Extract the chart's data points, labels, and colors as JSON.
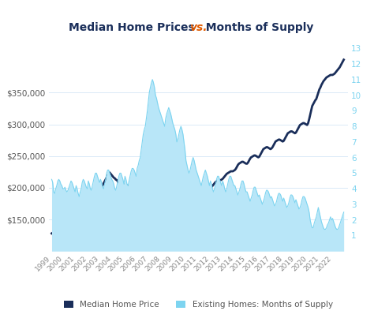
{
  "title_left": "Median Home Prices ",
  "title_vs": "vs.",
  "title_right": "  Months of Supply",
  "title_color": "#1a2e5a",
  "title_vs_color": "#e05a00",
  "price_color": "#1a2e5a",
  "supply_color": "#7dd4f0",
  "supply_fill_color": "#b8e6f8",
  "background_color": "#ffffff",
  "grid_color": "#daeaf7",
  "legend_price_label": "Median Home Price",
  "legend_supply_label": "Existing Homes: Months of Supply",
  "ylim_price_min": 100000,
  "ylim_price_max": 420000,
  "ylim_supply_min": 0,
  "ylim_supply_max": 13,
  "price_yticks": [
    150000,
    200000,
    250000,
    300000,
    350000
  ],
  "supply_yticks": [
    1,
    2,
    3,
    4,
    5,
    6,
    7,
    8,
    9,
    10,
    11,
    12,
    13
  ],
  "months_supply": [
    4.6,
    4.4,
    3.8,
    3.7,
    4.0,
    4.2,
    4.5,
    4.6,
    4.5,
    4.3,
    4.2,
    4.0,
    4.0,
    4.1,
    3.9,
    3.8,
    3.9,
    4.1,
    4.3,
    4.5,
    4.4,
    4.2,
    4.0,
    3.8,
    4.2,
    4.0,
    3.7,
    3.5,
    3.8,
    4.0,
    4.4,
    4.6,
    4.5,
    4.3,
    4.1,
    4.0,
    4.5,
    4.3,
    4.0,
    3.9,
    4.2,
    4.5,
    4.8,
    5.0,
    5.0,
    4.8,
    4.6,
    4.4,
    4.6,
    4.4,
    4.1,
    4.0,
    4.3,
    4.6,
    5.0,
    5.2,
    5.2,
    5.0,
    4.8,
    4.6,
    4.5,
    4.3,
    4.0,
    3.9,
    4.2,
    4.5,
    4.8,
    5.0,
    5.0,
    4.8,
    4.6,
    4.3,
    4.8,
    4.6,
    4.3,
    4.2,
    4.5,
    4.8,
    5.1,
    5.3,
    5.3,
    5.2,
    5.0,
    4.8,
    5.3,
    5.5,
    5.8,
    6.0,
    6.5,
    7.0,
    7.5,
    7.8,
    8.0,
    8.5,
    9.0,
    9.6,
    10.2,
    10.5,
    10.8,
    11.0,
    10.8,
    10.5,
    10.0,
    9.8,
    9.5,
    9.2,
    9.0,
    8.8,
    8.6,
    8.4,
    8.2,
    8.0,
    8.5,
    8.8,
    9.0,
    9.2,
    9.0,
    8.8,
    8.5,
    8.2,
    8.0,
    7.8,
    7.5,
    7.0,
    7.2,
    7.5,
    7.8,
    8.0,
    7.8,
    7.5,
    7.0,
    6.5,
    5.8,
    5.5,
    5.2,
    5.0,
    5.2,
    5.5,
    5.8,
    6.0,
    5.8,
    5.5,
    5.2,
    5.0,
    4.8,
    4.6,
    4.4,
    4.2,
    4.5,
    4.8,
    5.0,
    5.2,
    5.0,
    4.8,
    4.5,
    4.2,
    4.5,
    4.3,
    4.0,
    3.8,
    4.0,
    4.3,
    4.6,
    4.8,
    4.8,
    4.6,
    4.4,
    4.2,
    4.5,
    4.3,
    4.0,
    3.8,
    4.0,
    4.3,
    4.6,
    4.8,
    4.8,
    4.6,
    4.4,
    4.2,
    4.2,
    4.0,
    3.8,
    3.6,
    3.8,
    4.0,
    4.3,
    4.5,
    4.5,
    4.3,
    4.0,
    3.8,
    3.8,
    3.6,
    3.4,
    3.2,
    3.4,
    3.6,
    3.9,
    4.1,
    4.1,
    3.9,
    3.7,
    3.5,
    3.6,
    3.4,
    3.2,
    3.0,
    3.2,
    3.4,
    3.7,
    3.9,
    3.9,
    3.8,
    3.6,
    3.4,
    3.5,
    3.3,
    3.1,
    2.9,
    3.0,
    3.2,
    3.5,
    3.7,
    3.7,
    3.6,
    3.4,
    3.2,
    3.4,
    3.2,
    3.0,
    2.8,
    2.9,
    3.1,
    3.4,
    3.6,
    3.6,
    3.5,
    3.3,
    3.1,
    3.3,
    3.1,
    2.9,
    2.7,
    2.8,
    3.0,
    3.3,
    3.5,
    3.5,
    3.4,
    3.2,
    3.0,
    2.8,
    2.5,
    2.0,
    1.7,
    1.5,
    1.5,
    1.8,
    2.0,
    2.2,
    2.5,
    2.8,
    2.5,
    2.2,
    1.9,
    1.7,
    1.5,
    1.4,
    1.4,
    1.5,
    1.7,
    1.8,
    2.0,
    2.2,
    2.0,
    2.1,
    1.9,
    1.7,
    1.5,
    1.4,
    1.4,
    1.5,
    1.7,
    1.9,
    2.1,
    2.3,
    2.5
  ],
  "home_prices": [
    128000,
    129000,
    130000,
    131000,
    132000,
    133000,
    134000,
    135000,
    136000,
    137000,
    138000,
    139000,
    140000,
    141000,
    142000,
    143000,
    144000,
    145000,
    146000,
    147000,
    148000,
    149000,
    150000,
    151000,
    152000,
    154000,
    156000,
    158000,
    160000,
    162000,
    164000,
    166000,
    168000,
    170000,
    172000,
    174000,
    176000,
    178000,
    180000,
    182000,
    184000,
    186000,
    188000,
    190000,
    192000,
    194000,
    196000,
    198000,
    200000,
    202000,
    204000,
    207000,
    210000,
    213000,
    216000,
    220000,
    222000,
    224000,
    222000,
    220000,
    218000,
    216000,
    215000,
    213000,
    212000,
    210000,
    208000,
    207000,
    206000,
    205000,
    205000,
    205000,
    205000,
    205000,
    204000,
    203000,
    202000,
    201000,
    200000,
    200000,
    199000,
    198000,
    197000,
    196000,
    195000,
    194000,
    193000,
    193000,
    193000,
    193000,
    192000,
    191000,
    190000,
    189000,
    188000,
    187000,
    186000,
    185000,
    184000,
    183000,
    182000,
    181000,
    180000,
    179000,
    178000,
    177000,
    176000,
    175000,
    174000,
    173000,
    172000,
    171000,
    170000,
    170000,
    170000,
    170000,
    170000,
    169000,
    169000,
    168000,
    167000,
    166000,
    165000,
    164000,
    163000,
    163000,
    163000,
    163000,
    163000,
    164000,
    165000,
    166000,
    168000,
    170000,
    172000,
    174000,
    176000,
    178000,
    179000,
    180000,
    181000,
    181000,
    181000,
    181000,
    182000,
    184000,
    186000,
    188000,
    190000,
    192000,
    194000,
    196000,
    197000,
    198000,
    198000,
    198000,
    199000,
    201000,
    203000,
    205000,
    207000,
    209000,
    210000,
    211000,
    212000,
    212000,
    212000,
    213000,
    214000,
    216000,
    218000,
    220000,
    222000,
    223000,
    224000,
    225000,
    226000,
    226000,
    226000,
    227000,
    228000,
    230000,
    233000,
    236000,
    238000,
    239000,
    240000,
    241000,
    241000,
    240000,
    239000,
    238000,
    238000,
    240000,
    243000,
    246000,
    248000,
    249000,
    250000,
    251000,
    251000,
    250000,
    249000,
    248000,
    249000,
    252000,
    255000,
    258000,
    261000,
    262000,
    263000,
    264000,
    264000,
    263000,
    262000,
    261000,
    262000,
    264000,
    267000,
    270000,
    273000,
    274000,
    275000,
    276000,
    276000,
    275000,
    274000,
    273000,
    274000,
    277000,
    280000,
    283000,
    286000,
    287000,
    288000,
    289000,
    289000,
    288000,
    287000,
    286000,
    287000,
    290000,
    293000,
    296000,
    299000,
    300000,
    301000,
    302000,
    302000,
    301000,
    300000,
    299000,
    302000,
    308000,
    315000,
    322000,
    329000,
    332000,
    335000,
    338000,
    340000,
    345000,
    350000,
    355000,
    358000,
    362000,
    365000,
    368000,
    370000,
    372000,
    374000,
    375000,
    376000,
    377000,
    378000,
    378000,
    378000,
    379000,
    380000,
    382000,
    384000,
    386000,
    388000,
    390000,
    393000,
    396000,
    399000,
    402000
  ],
  "x_tick_labels": [
    "1999",
    "2000",
    "2001",
    "2002",
    "2003",
    "2004",
    "2005",
    "2006",
    "2007",
    "2008",
    "2009",
    "2010",
    "2011",
    "2012",
    "2013",
    "2014",
    "2015",
    "2016",
    "2017",
    "2018",
    "2019",
    "2020",
    "2021",
    "2022"
  ],
  "n_per_year": 12
}
